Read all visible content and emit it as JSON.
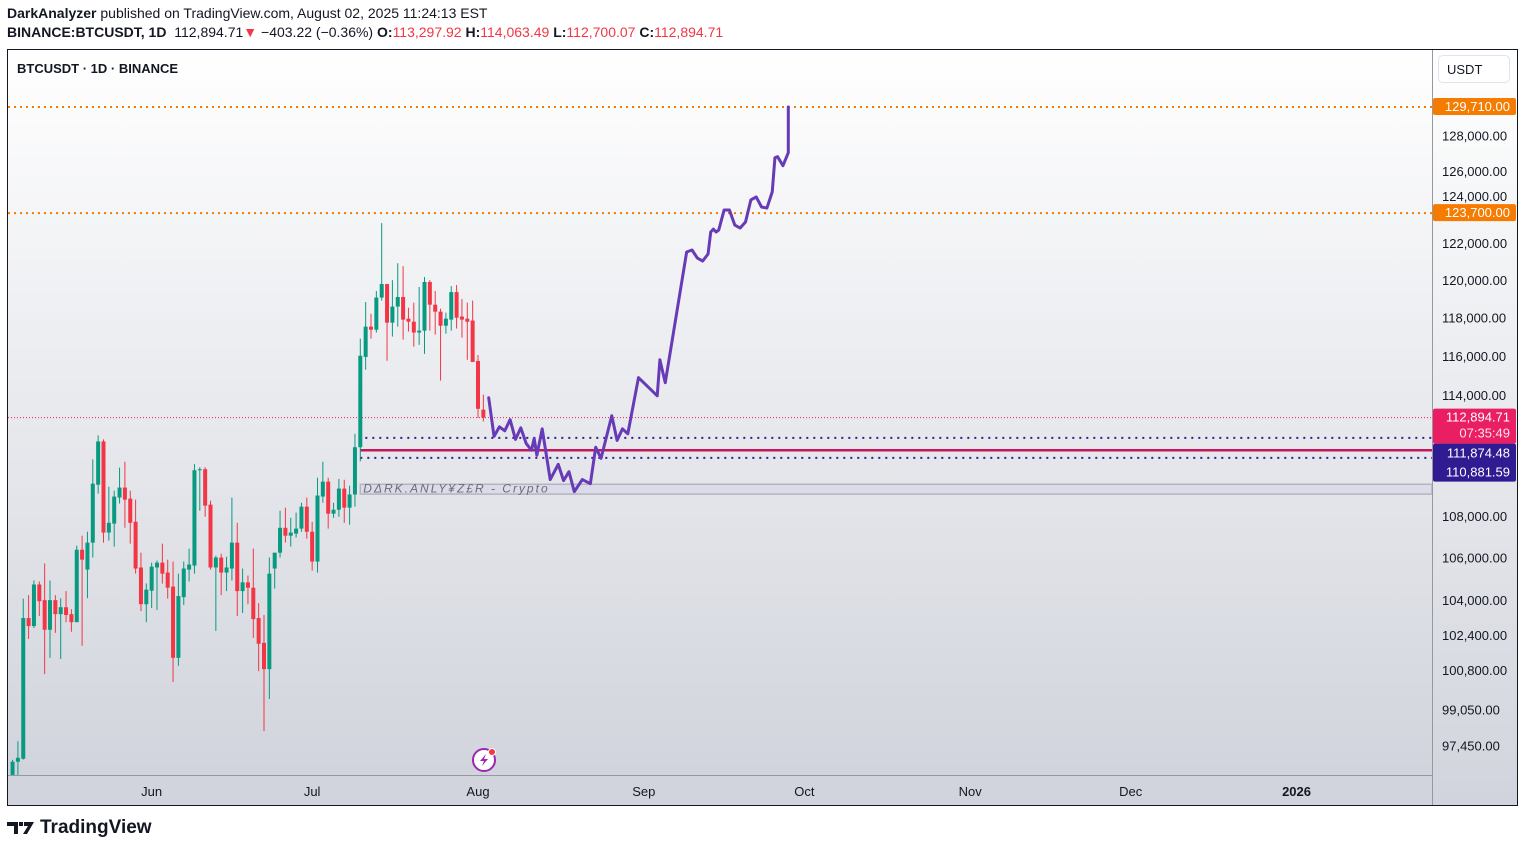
{
  "header": {
    "author": "DarkAnalyzer",
    "published": "published on TradingView.com, August 02, 2025 11:24:13 EST",
    "symbol": "BINANCE:BTCUSDT, 1D",
    "last": "112,894.71",
    "change": "−403.22 (−0.36%)",
    "o_label": "O:",
    "o": "113,297.92",
    "h_label": "H:",
    "h": "114,063.49",
    "l_label": "L:",
    "l": "112,700.07",
    "c_label": "C:",
    "c": "112,894.71"
  },
  "chart_title": "BTCUSDT · 1D · BINANCE",
  "currency_button": "USDT",
  "footer": {
    "brand": "TradingView"
  },
  "colors": {
    "up": "#089981",
    "down": "#f23645",
    "projection": "#673ab7",
    "level": "#f57c00",
    "zone_blue": "#311b92",
    "price_line": "#e91e63"
  },
  "chart_data": {
    "type": "candlestick",
    "scale": "log",
    "ylim": [
      96200,
      131500
    ],
    "xlim": [
      "2025-05-05",
      "2026-02-10"
    ],
    "y_ticks": [
      "128,000.00",
      "126,000.00",
      "124,000.00",
      "122,000.00",
      "120,000.00",
      "118,000.00",
      "116,000.00",
      "114,000.00",
      "108,000.00",
      "106,000.00",
      "104,000.00",
      "102,400.00",
      "100,800.00",
      "99,050.00",
      "97,450.00"
    ],
    "y_tick_values": [
      128000,
      126000,
      124000,
      122000,
      120000,
      118000,
      116000,
      114000,
      108000,
      106000,
      104000,
      102400,
      100800,
      99050,
      97450
    ],
    "x_ticks": [
      {
        "label": "Jun",
        "date": "2025-06-01"
      },
      {
        "label": "Jul",
        "date": "2025-07-01"
      },
      {
        "label": "Aug",
        "date": "2025-08-01"
      },
      {
        "label": "Sep",
        "date": "2025-09-01"
      },
      {
        "label": "Oct",
        "date": "2025-10-01"
      },
      {
        "label": "Nov",
        "date": "2025-11-01"
      },
      {
        "label": "Dec",
        "date": "2025-12-01"
      },
      {
        "label": "2026",
        "date": "2026-01-01",
        "bold": true
      }
    ],
    "candles_columns": [
      "date",
      "open",
      "high",
      "low",
      "close"
    ],
    "candles": [
      [
        "2025-05-06",
        96230,
        96880,
        96230,
        96800
      ],
      [
        "2025-05-07",
        96800,
        97690,
        96230,
        96970
      ],
      [
        "2025-05-08",
        96930,
        104120,
        96890,
        103220
      ],
      [
        "2025-05-09",
        103220,
        104280,
        102260,
        102850
      ],
      [
        "2025-05-10",
        102850,
        104970,
        102760,
        104780
      ],
      [
        "2025-05-11",
        104780,
        104920,
        103310,
        104000
      ],
      [
        "2025-05-12",
        104050,
        105770,
        100670,
        102680
      ],
      [
        "2025-05-13",
        102680,
        104970,
        101400,
        104050
      ],
      [
        "2025-05-14",
        104050,
        104280,
        102540,
        103400
      ],
      [
        "2025-05-15",
        103400,
        104140,
        101350,
        103720
      ],
      [
        "2025-05-16",
        103720,
        104470,
        103030,
        103360
      ],
      [
        "2025-05-17",
        103400,
        103630,
        102590,
        103030
      ],
      [
        "2025-05-18",
        103030,
        106610,
        103030,
        106420
      ],
      [
        "2025-05-19",
        106420,
        107090,
        101950,
        105950
      ],
      [
        "2025-05-20",
        105480,
        107280,
        104140,
        106760
      ],
      [
        "2025-05-21",
        106760,
        110810,
        106050,
        109610
      ],
      [
        "2025-05-22",
        109560,
        112000,
        109120,
        111700
      ],
      [
        "2025-05-23",
        111700,
        111800,
        106760,
        107240
      ],
      [
        "2025-05-24",
        107240,
        109460,
        106850,
        107710
      ],
      [
        "2025-05-25",
        107670,
        109270,
        106570,
        108980
      ],
      [
        "2025-05-26",
        108930,
        110400,
        108640,
        109420
      ],
      [
        "2025-05-27",
        109420,
        110690,
        107470,
        108830
      ],
      [
        "2025-05-28",
        108880,
        109270,
        106710,
        107710
      ],
      [
        "2025-05-29",
        107760,
        108830,
        105290,
        105530
      ],
      [
        "2025-05-30",
        105580,
        106280,
        103540,
        103860
      ],
      [
        "2025-05-31",
        103860,
        104830,
        103030,
        104540
      ],
      [
        "2025-06-01",
        104490,
        105810,
        103680,
        105620
      ],
      [
        "2025-06-02",
        105580,
        105910,
        103590,
        105810
      ],
      [
        "2025-06-03",
        105810,
        106710,
        104820,
        105290
      ],
      [
        "2025-06-04",
        105340,
        105950,
        104120,
        104630
      ],
      [
        "2025-06-05",
        104680,
        105860,
        100310,
        101400
      ],
      [
        "2025-06-06",
        101400,
        105290,
        101040,
        104240
      ],
      [
        "2025-06-07",
        104190,
        105860,
        103820,
        105530
      ],
      [
        "2025-06-08",
        105480,
        106470,
        104920,
        105720
      ],
      [
        "2025-06-09",
        105670,
        110570,
        105290,
        110270
      ],
      [
        "2025-06-10",
        110270,
        110420,
        108290,
        110320
      ],
      [
        "2025-06-11",
        110320,
        110420,
        108000,
        108540
      ],
      [
        "2025-06-12",
        108590,
        108780,
        105480,
        105580
      ],
      [
        "2025-06-13",
        105580,
        106140,
        102630,
        106050
      ],
      [
        "2025-06-14",
        106050,
        106230,
        104280,
        105340
      ],
      [
        "2025-06-15",
        105340,
        106090,
        104470,
        105580
      ],
      [
        "2025-06-16",
        105530,
        108930,
        104970,
        106760
      ],
      [
        "2025-06-17",
        106760,
        107710,
        103310,
        104470
      ],
      [
        "2025-06-18",
        104470,
        105530,
        103450,
        104880
      ],
      [
        "2025-06-19",
        104880,
        105200,
        103860,
        104630
      ],
      [
        "2025-06-20",
        104630,
        106470,
        102310,
        103170
      ],
      [
        "2025-06-21",
        103220,
        103910,
        100800,
        102040
      ],
      [
        "2025-06-22",
        102080,
        103360,
        98130,
        100890
      ],
      [
        "2025-06-23",
        100890,
        106050,
        99550,
        105290
      ],
      [
        "2025-06-24",
        105530,
        106280,
        104590,
        106280
      ],
      [
        "2025-06-25",
        106280,
        108290,
        106050,
        107470
      ],
      [
        "2025-06-26",
        107470,
        108440,
        106760,
        107090
      ],
      [
        "2025-06-27",
        107090,
        107950,
        106570,
        107240
      ],
      [
        "2025-06-28",
        107190,
        108200,
        107000,
        107430
      ],
      [
        "2025-06-29",
        107430,
        108680,
        107280,
        108490
      ],
      [
        "2025-06-30",
        108490,
        108930,
        106950,
        107280
      ],
      [
        "2025-07-01",
        107280,
        107760,
        105430,
        105860
      ],
      [
        "2025-07-02",
        105860,
        109900,
        105340,
        109030
      ],
      [
        "2025-07-03",
        108980,
        110690,
        108680,
        109710
      ],
      [
        "2025-07-04",
        109710,
        109900,
        107430,
        108150
      ],
      [
        "2025-07-05",
        108150,
        108680,
        107950,
        108340
      ],
      [
        "2025-07-06",
        108340,
        109850,
        108000,
        109370
      ],
      [
        "2025-07-07",
        109370,
        109800,
        107710,
        108440
      ],
      [
        "2025-07-08",
        108440,
        109510,
        107620,
        109080
      ],
      [
        "2025-07-09",
        109080,
        112080,
        108490,
        111410
      ],
      [
        "2025-07-10",
        111410,
        116950,
        110710,
        116060
      ],
      [
        "2025-07-11",
        116000,
        118880,
        115340,
        117580
      ],
      [
        "2025-07-12",
        117580,
        118260,
        116950,
        117420
      ],
      [
        "2025-07-13",
        117420,
        119470,
        117270,
        119120
      ],
      [
        "2025-07-14",
        119120,
        123150,
        118960,
        119840
      ],
      [
        "2025-07-15",
        119840,
        119840,
        115800,
        117790
      ],
      [
        "2025-07-16",
        117790,
        120050,
        117060,
        118640
      ],
      [
        "2025-07-17",
        118640,
        120960,
        117580,
        119150
      ],
      [
        "2025-07-18",
        119150,
        120800,
        116900,
        117950
      ],
      [
        "2025-07-19",
        118000,
        118580,
        117320,
        117840
      ],
      [
        "2025-07-20",
        117840,
        118850,
        116530,
        117270
      ],
      [
        "2025-07-21",
        117270,
        119680,
        116630,
        117370
      ],
      [
        "2025-07-22",
        117370,
        120220,
        116160,
        119950
      ],
      [
        "2025-07-23",
        119950,
        120050,
        117370,
        118740
      ],
      [
        "2025-07-24",
        118740,
        119470,
        117160,
        118370
      ],
      [
        "2025-07-25",
        118370,
        118530,
        114780,
        117630
      ],
      [
        "2025-07-26",
        117630,
        118320,
        117210,
        118000
      ],
      [
        "2025-07-27",
        117950,
        119730,
        117370,
        119410
      ],
      [
        "2025-07-28",
        119410,
        119790,
        117480,
        118050
      ],
      [
        "2025-07-29",
        118110,
        119040,
        117000,
        117950
      ],
      [
        "2025-07-30",
        118000,
        118850,
        115850,
        117840
      ],
      [
        "2025-07-31",
        117900,
        118960,
        115740,
        115740
      ],
      [
        "2025-08-01",
        115790,
        116100,
        112880,
        113340
      ],
      [
        "2025-08-02",
        113297.92,
        114063.49,
        112700.07,
        112894.71
      ]
    ],
    "projection_path": [
      [
        "2025-08-03T00:00",
        113900
      ],
      [
        "2025-08-04T00:00",
        111950
      ],
      [
        "2025-08-05T00:00",
        112430
      ],
      [
        "2025-08-06T00:00",
        112230
      ],
      [
        "2025-08-07T00:00",
        112790
      ],
      [
        "2025-08-08T00:00",
        111800
      ],
      [
        "2025-08-09T00:00",
        112380
      ],
      [
        "2025-08-10T00:00",
        111600
      ],
      [
        "2025-08-11T00:00",
        111260
      ],
      [
        "2025-08-11T12:00",
        111850
      ],
      [
        "2025-08-12T00:00",
        111010
      ],
      [
        "2025-08-13T00:00",
        112330
      ],
      [
        "2025-08-14T12:00",
        109810
      ],
      [
        "2025-08-16T00:00",
        110560
      ],
      [
        "2025-08-17T00:00",
        109760
      ],
      [
        "2025-08-18T00:00",
        110200
      ],
      [
        "2025-08-19T00:00",
        109220
      ],
      [
        "2025-08-20T12:00",
        109810
      ],
      [
        "2025-08-22T00:00",
        109610
      ],
      [
        "2025-08-23T00:00",
        111410
      ],
      [
        "2025-08-24T00:00",
        110860
      ],
      [
        "2025-08-26T00:00",
        112990
      ],
      [
        "2025-08-27T00:00",
        111750
      ],
      [
        "2025-08-28T00:00",
        112330
      ],
      [
        "2025-08-29T00:00",
        112080
      ],
      [
        "2025-08-31T00:00",
        114930
      ],
      [
        "2025-09-03T12:00",
        114000
      ],
      [
        "2025-09-04T00:00",
        115850
      ],
      [
        "2025-09-05T00:00",
        114670
      ],
      [
        "2025-09-09T00:00",
        121570
      ],
      [
        "2025-09-10T00:00",
        121680
      ],
      [
        "2025-09-11T00:00",
        121240
      ],
      [
        "2025-09-12T00:00",
        121080
      ],
      [
        "2025-09-13T00:00",
        121460
      ],
      [
        "2025-09-13T12:00",
        122660
      ],
      [
        "2025-09-14T00:00",
        122820
      ],
      [
        "2025-09-14T12:00",
        122660
      ],
      [
        "2025-09-15T00:00",
        122770
      ],
      [
        "2025-09-16T00:00",
        123870
      ],
      [
        "2025-09-17T00:00",
        123870
      ],
      [
        "2025-09-18T00:00",
        123040
      ],
      [
        "2025-09-19T00:00",
        122880
      ],
      [
        "2025-09-20T00:00",
        123210
      ],
      [
        "2025-09-21T00:00",
        124430
      ],
      [
        "2025-09-22T00:00",
        124600
      ],
      [
        "2025-09-23T00:00",
        124040
      ],
      [
        "2025-09-24T00:00",
        123980
      ],
      [
        "2025-09-25T00:00",
        124880
      ],
      [
        "2025-09-25T12:00",
        126800
      ],
      [
        "2025-09-26T00:00",
        126860
      ],
      [
        "2025-09-27T00:00",
        126350
      ],
      [
        "2025-09-28T00:00",
        127090
      ],
      [
        "2025-09-28T00:00",
        129710
      ]
    ],
    "levels": [
      {
        "price": 129710,
        "label": "129,710.00",
        "style": "dotted",
        "color": "#f57c00"
      },
      {
        "price": 123700,
        "label": "123,700.00",
        "style": "dotted",
        "color": "#f57c00"
      }
    ],
    "current_price": {
      "price": 112894.71,
      "label": "112,894.71",
      "countdown": "07:35:49",
      "color": "#e91e63"
    },
    "zone": {
      "from": "2025-07-10",
      "upper": {
        "price": 111874.48,
        "label": "111,874.48"
      },
      "lower": {
        "price": 110881.59,
        "label": "110,881.59"
      },
      "mid": 111260,
      "color": "#311b92"
    },
    "watermark_box": {
      "from": "2025-07-10",
      "top": 109580,
      "bottom": 109100,
      "text": "DΔRK.ANLY¥Z£R - Crypto"
    }
  }
}
